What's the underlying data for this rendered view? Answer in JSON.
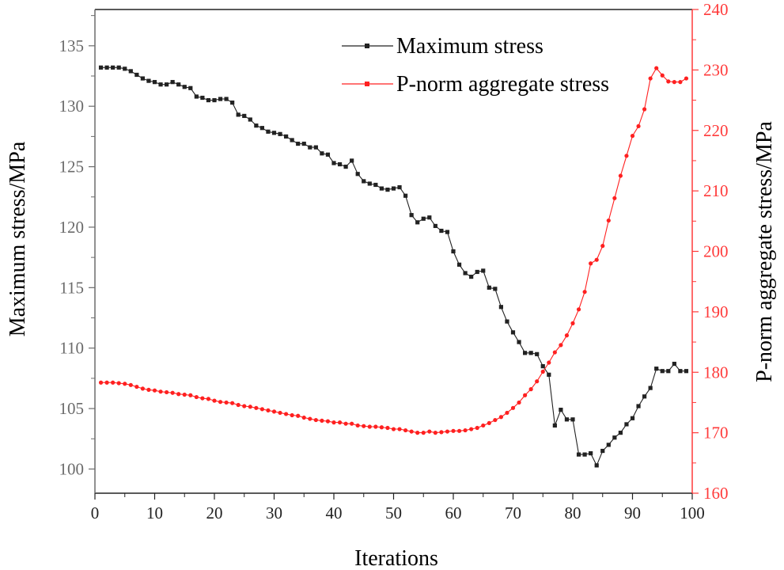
{
  "chart_data": {
    "type": "line",
    "title": "",
    "xlabel": "Iterations",
    "ylabel_left": "Maximum stress/MPa",
    "ylabel_right": "P-norm aggregate stress/MPa",
    "xlim": [
      0,
      100
    ],
    "ylim_left": [
      98,
      138
    ],
    "ylim_right": [
      160,
      240
    ],
    "x_ticks": [
      0,
      10,
      20,
      30,
      40,
      50,
      60,
      70,
      80,
      90,
      100
    ],
    "y_left_ticks": [
      100,
      105,
      110,
      115,
      120,
      125,
      130,
      135
    ],
    "y_right_ticks": [
      160,
      170,
      180,
      190,
      200,
      210,
      220,
      230,
      240
    ],
    "grid": false,
    "legend_position": "top-center",
    "colors": {
      "left_axis": "#6b6b6b",
      "right_axis": "#ff3a3a"
    },
    "series": [
      {
        "name": "Maximum stress",
        "axis": "left",
        "color": "#222222",
        "marker": "square",
        "x": [
          1,
          2,
          3,
          4,
          5,
          6,
          7,
          8,
          9,
          10,
          11,
          12,
          13,
          14,
          15,
          16,
          17,
          18,
          19,
          20,
          21,
          22,
          23,
          24,
          25,
          26,
          27,
          28,
          29,
          30,
          31,
          32,
          33,
          34,
          35,
          36,
          37,
          38,
          39,
          40,
          41,
          42,
          43,
          44,
          45,
          46,
          47,
          48,
          49,
          50,
          51,
          52,
          53,
          54,
          55,
          56,
          57,
          58,
          59,
          60,
          61,
          62,
          63,
          64,
          65,
          66,
          67,
          68,
          69,
          70,
          71,
          72,
          73,
          74,
          75,
          76,
          77,
          78,
          79,
          80,
          81,
          82,
          83,
          84,
          85,
          86,
          87,
          88,
          89,
          90,
          91,
          92,
          93,
          94,
          95,
          96,
          97,
          98,
          99
        ],
        "values": [
          133.2,
          133.2,
          133.2,
          133.2,
          133.1,
          132.9,
          132.6,
          132.3,
          132.1,
          132.0,
          131.8,
          131.8,
          132.0,
          131.8,
          131.6,
          131.5,
          130.8,
          130.7,
          130.5,
          130.5,
          130.6,
          130.6,
          130.3,
          129.3,
          129.2,
          128.9,
          128.4,
          128.2,
          127.9,
          127.8,
          127.7,
          127.5,
          127.2,
          126.9,
          126.9,
          126.6,
          126.6,
          126.1,
          126.0,
          125.3,
          125.2,
          125.0,
          125.5,
          124.4,
          123.8,
          123.6,
          123.5,
          123.2,
          123.1,
          123.2,
          123.3,
          122.6,
          121.0,
          120.4,
          120.7,
          120.8,
          120.1,
          119.7,
          119.6,
          118.0,
          116.9,
          116.2,
          115.9,
          116.3,
          116.4,
          115.0,
          114.9,
          113.4,
          112.2,
          111.3,
          110.5,
          109.6,
          109.6,
          109.5,
          108.5,
          107.8,
          103.6,
          104.9,
          104.1,
          104.1,
          101.2,
          101.2,
          101.3,
          100.3,
          101.5,
          102.0,
          102.6,
          103.0,
          103.7,
          104.2,
          105.2,
          106.0,
          106.7,
          108.3,
          108.1,
          108.1,
          108.7,
          108.1,
          108.1
        ]
      },
      {
        "name": "P-norm aggregate stress",
        "axis": "right",
        "color": "#ff2020",
        "marker": "circle",
        "x": [
          1,
          2,
          3,
          4,
          5,
          6,
          7,
          8,
          9,
          10,
          11,
          12,
          13,
          14,
          15,
          16,
          17,
          18,
          19,
          20,
          21,
          22,
          23,
          24,
          25,
          26,
          27,
          28,
          29,
          30,
          31,
          32,
          33,
          34,
          35,
          36,
          37,
          38,
          39,
          40,
          41,
          42,
          43,
          44,
          45,
          46,
          47,
          48,
          49,
          50,
          51,
          52,
          53,
          54,
          55,
          56,
          57,
          58,
          59,
          60,
          61,
          62,
          63,
          64,
          65,
          66,
          67,
          68,
          69,
          70,
          71,
          72,
          73,
          74,
          75,
          76,
          77,
          78,
          79,
          80,
          81,
          82,
          83,
          84,
          85,
          86,
          87,
          88,
          89,
          90,
          91,
          92,
          93,
          94,
          95,
          96,
          97,
          98,
          99
        ],
        "values": [
          178.3,
          178.3,
          178.3,
          178.2,
          178.1,
          177.9,
          177.6,
          177.3,
          177.1,
          177.0,
          176.8,
          176.7,
          176.6,
          176.4,
          176.3,
          176.2,
          175.9,
          175.7,
          175.6,
          175.3,
          175.1,
          175.0,
          174.9,
          174.6,
          174.4,
          174.3,
          174.1,
          173.9,
          173.7,
          173.5,
          173.3,
          173.1,
          172.9,
          172.8,
          172.5,
          172.3,
          172.1,
          172.0,
          171.9,
          171.7,
          171.7,
          171.5,
          171.5,
          171.2,
          171.1,
          171.0,
          171.0,
          170.9,
          170.8,
          170.6,
          170.6,
          170.4,
          170.2,
          170.0,
          170.0,
          170.2,
          170.0,
          170.1,
          170.2,
          170.3,
          170.3,
          170.4,
          170.6,
          170.8,
          171.2,
          171.6,
          172.1,
          172.6,
          173.3,
          174.1,
          175.0,
          176.2,
          177.2,
          178.5,
          180.1,
          181.6,
          183.3,
          184.5,
          186.1,
          188.1,
          190.4,
          193.3,
          198.0,
          198.6,
          200.9,
          205.1,
          208.8,
          212.5,
          215.8,
          219.1,
          220.7,
          223.5,
          228.6,
          230.3,
          229.1,
          228.1,
          228.0,
          228.0,
          228.6
        ]
      }
    ]
  }
}
